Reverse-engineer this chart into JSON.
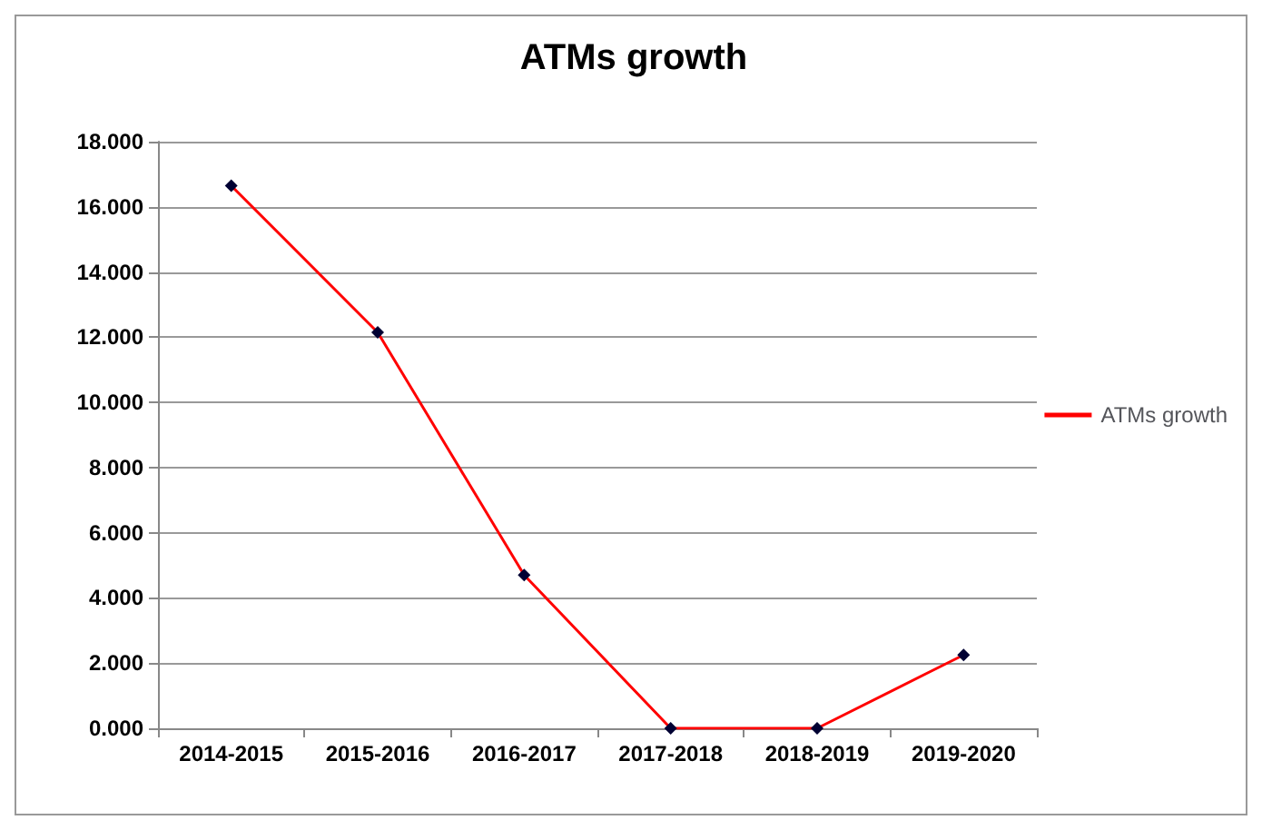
{
  "chart_data": {
    "type": "line",
    "title": "ATMs growth",
    "categories": [
      "2014-2015",
      "2015-2016",
      "2016-2017",
      "2017-2018",
      "2018-2019",
      "2019-2020"
    ],
    "series": [
      {
        "name": "ATMs growth",
        "color": "#ff0000",
        "values": [
          16.65,
          12.15,
          4.7,
          0,
          0,
          2.25
        ]
      }
    ],
    "ylim": [
      0,
      18
    ],
    "yticks": [
      {
        "value": 0,
        "label": "0.000"
      },
      {
        "value": 2,
        "label": "2.000"
      },
      {
        "value": 4,
        "label": "4.000"
      },
      {
        "value": 6,
        "label": "6.000"
      },
      {
        "value": 8,
        "label": "8.000"
      },
      {
        "value": 10,
        "label": "10.000"
      },
      {
        "value": 12,
        "label": "12.000"
      },
      {
        "value": 14,
        "label": "14.000"
      },
      {
        "value": 16,
        "label": "16.000"
      },
      {
        "value": 18,
        "label": "18.000"
      }
    ],
    "grid": "y",
    "legend": "right",
    "marker": "diamond",
    "line_style": "solid"
  }
}
